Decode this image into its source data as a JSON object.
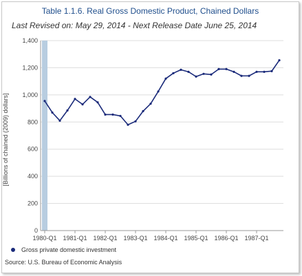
{
  "header": {
    "title": "Table 1.1.6. Real Gross Domestic Product, Chained Dollars",
    "subtitle": "Last Revised on: May 29, 2014 - Next Release Date June 25, 2014"
  },
  "source": "Source: U.S. Bureau of Economic Analysis",
  "colors": {
    "series": "#1a2a7a",
    "title": "#1f4e8c",
    "gridline": "#dddddd",
    "highlight_band": "#b8cde0"
  },
  "chart_data": {
    "type": "line",
    "title": "Table 1.1.6. Real Gross Domestic Product, Chained Dollars",
    "ylabel": "[Billions of chained (2009) dollars]",
    "xlabel": "",
    "ylim": [
      0,
      1400
    ],
    "yticks": [
      "0",
      "200",
      "400",
      "600",
      "800",
      "1,000",
      "1,200",
      "1,400"
    ],
    "ytick_values": [
      0,
      200,
      400,
      600,
      800,
      1000,
      1200,
      1400
    ],
    "xticks": [
      "1980-Q1",
      "1981-Q1",
      "1982-Q1",
      "1983-Q1",
      "1984-Q1",
      "1985-Q1",
      "1986-Q1",
      "1987-Q1"
    ],
    "x": [
      "1980-Q1",
      "1980-Q2",
      "1980-Q3",
      "1980-Q4",
      "1981-Q1",
      "1981-Q2",
      "1981-Q3",
      "1981-Q4",
      "1982-Q1",
      "1982-Q2",
      "1982-Q3",
      "1982-Q4",
      "1983-Q1",
      "1983-Q2",
      "1983-Q3",
      "1983-Q4",
      "1984-Q1",
      "1984-Q2",
      "1984-Q3",
      "1984-Q4",
      "1985-Q1",
      "1985-Q2",
      "1985-Q3",
      "1985-Q4",
      "1986-Q1",
      "1986-Q2",
      "1986-Q3",
      "1986-Q4",
      "1987-Q1",
      "1987-Q2",
      "1987-Q3",
      "1987-Q4"
    ],
    "series": [
      {
        "name": "Gross private domestic investment",
        "values": [
          955,
          870,
          810,
          885,
          970,
          930,
          985,
          945,
          855,
          855,
          845,
          780,
          805,
          880,
          935,
          1025,
          1120,
          1160,
          1185,
          1170,
          1135,
          1155,
          1150,
          1190,
          1190,
          1170,
          1140,
          1140,
          1170,
          1170,
          1175,
          1255
        ]
      }
    ],
    "highlight_band": "1980-Q1",
    "grid": "horizontal",
    "legend_position": "bottom-left"
  }
}
